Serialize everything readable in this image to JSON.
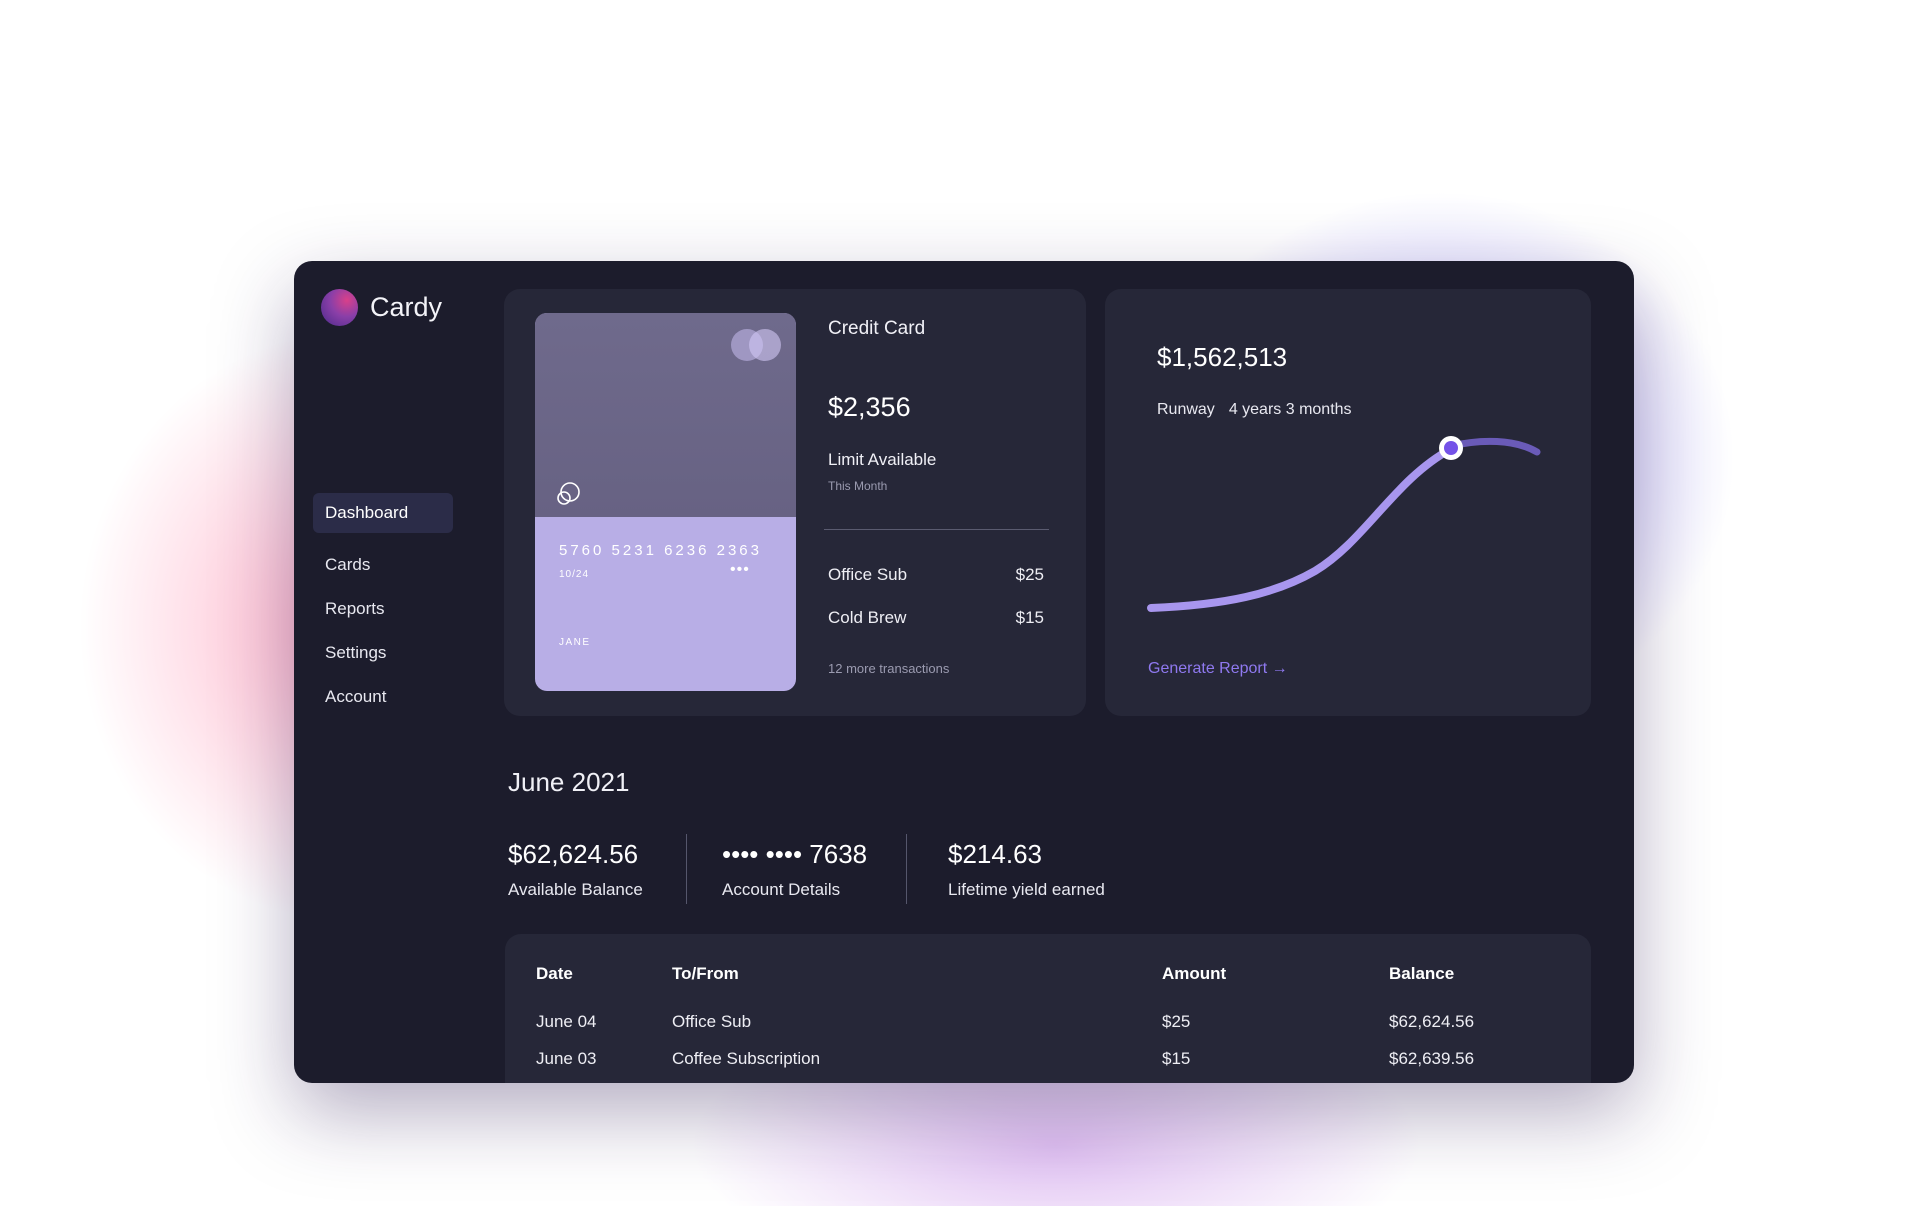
{
  "app": {
    "name": "Cardy"
  },
  "sidebar": {
    "items": [
      {
        "label": "Dashboard",
        "active": true
      },
      {
        "label": "Cards"
      },
      {
        "label": "Reports"
      },
      {
        "label": "Settings"
      },
      {
        "label": "Account"
      }
    ]
  },
  "credit_card": {
    "number": "5760 5231 6236 2363",
    "expiry": "10/24",
    "dots": "•••",
    "holder": "JANE",
    "title": "Credit Card",
    "amount": "$2,356",
    "limit_label": "Limit Available",
    "period": "This Month",
    "transactions": [
      {
        "name": "Office Sub",
        "amount": "$25"
      },
      {
        "name": "Cold Brew",
        "amount": "$15"
      }
    ],
    "more": "12 more transactions"
  },
  "runway": {
    "amount": "$1,562,513",
    "label": "Runway",
    "value": "4 years 3 months",
    "action": "Generate Report →"
  },
  "summary": {
    "title": "June 2021",
    "stats": [
      {
        "value": "$62,624.56",
        "label": "Available Balance"
      },
      {
        "value": "•••• •••• 7638",
        "label": "Account Details"
      },
      {
        "value": "$214.63",
        "label": "Lifetime yield earned"
      }
    ]
  },
  "table": {
    "headers": [
      "Date",
      "To/From",
      "Amount",
      "Balance"
    ],
    "rows": [
      [
        "June 04",
        "Office Sub",
        "$25",
        "$62,624.56"
      ],
      [
        "June 03",
        "Coffee Subscription",
        "$15",
        "$62,639.56"
      ]
    ]
  },
  "colors": {
    "window_bg": "#1c1c2c",
    "panel_bg": "#262738",
    "accent": "#8f79f0",
    "card_lilac": "#b8aee6"
  }
}
